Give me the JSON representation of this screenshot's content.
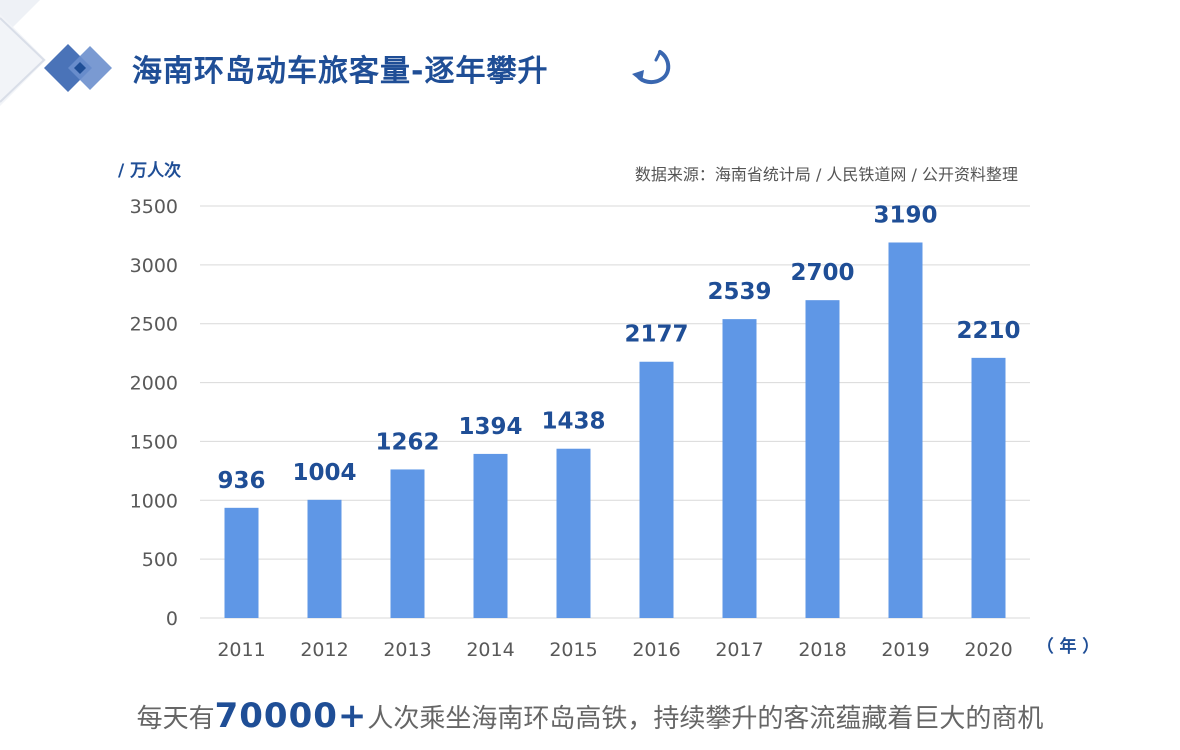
{
  "header": {
    "title": "海南环岛动车旅客量-逐年攀升",
    "icons": [
      "diamond-icon",
      "curved-arrow-icon"
    ]
  },
  "chart_data": {
    "type": "bar",
    "categories": [
      "2011",
      "2012",
      "2013",
      "2014",
      "2015",
      "2016",
      "2017",
      "2018",
      "2019",
      "2020"
    ],
    "values": [
      936,
      1004,
      1262,
      1394,
      1438,
      2177,
      2539,
      2700,
      3190,
      2210
    ],
    "ylim": [
      0,
      3500
    ],
    "yticks": [
      0,
      500,
      1000,
      1500,
      2000,
      2500,
      3000,
      3500
    ],
    "ylabel": "/ 万人次",
    "xlabel": "（ 年 ）",
    "source": "数据来源：海南省统计局 / 人民铁道网  / 公开资料整理",
    "bar_color": "#5f97e6",
    "label_color": "#1f4e96",
    "grid": true
  },
  "footer": {
    "pre": "每天有",
    "highlight": "70000+",
    "post": "人次乘坐海南环岛高铁，持续攀升的客流蕴藏着巨大的商机"
  }
}
